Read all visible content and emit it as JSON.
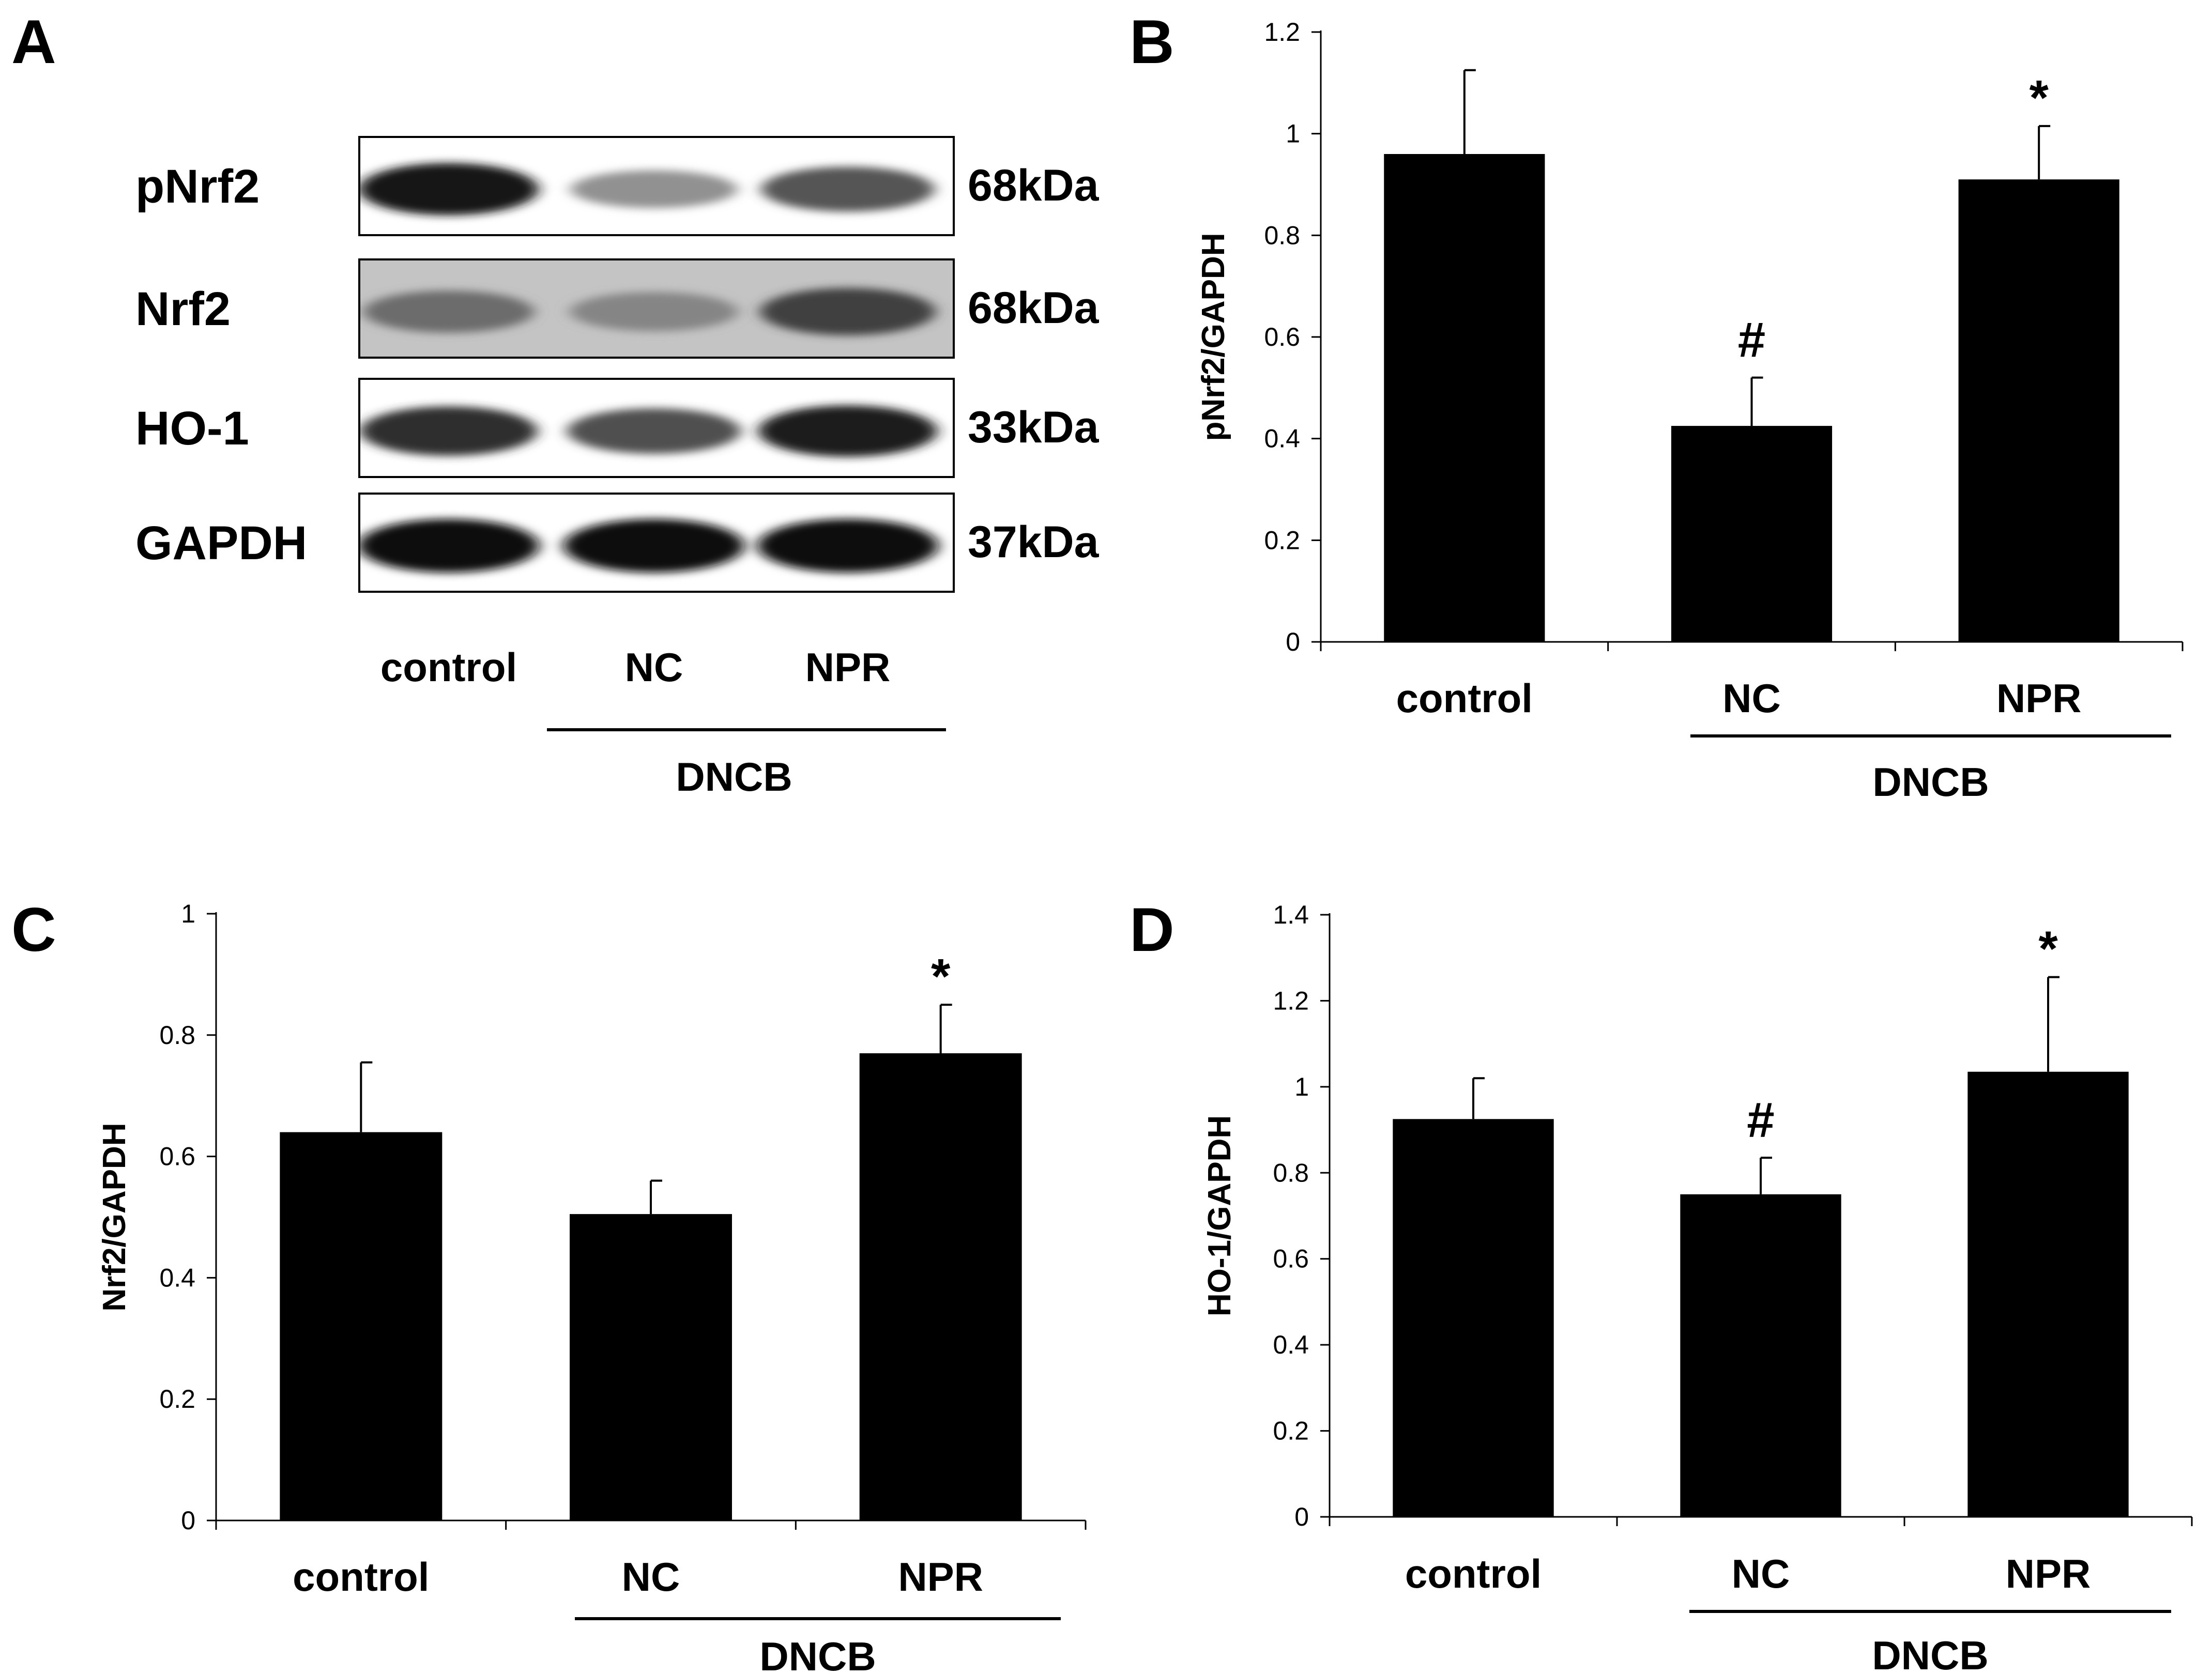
{
  "blot": {
    "panel_label": "A",
    "proteins": [
      {
        "name": "pNrf2",
        "mw": "68kDa",
        "intensity": [
          0.95,
          0.45,
          0.7
        ],
        "background": "#ffffff"
      },
      {
        "name": "Nrf2",
        "mw": "68kDa",
        "intensity": [
          0.6,
          0.5,
          0.78
        ],
        "background": "#c4c4c4"
      },
      {
        "name": "HO-1",
        "mw": "33kDa",
        "intensity": [
          0.85,
          0.72,
          0.92
        ],
        "background": "#ffffff"
      },
      {
        "name": "GAPDH",
        "mw": "37kDa",
        "intensity": [
          1.0,
          1.0,
          1.0
        ],
        "background": "#ffffff"
      }
    ],
    "lanes": [
      "control",
      "NC",
      "NPR"
    ],
    "group_label": "DNCB"
  },
  "chart_data": [
    {
      "panel_label": "B",
      "type": "bar",
      "categories": [
        "control",
        "NC",
        "NPR"
      ],
      "values": [
        0.96,
        0.425,
        0.91
      ],
      "errors": [
        0.165,
        0.095,
        0.105
      ],
      "annotations": [
        "",
        "#",
        "*"
      ],
      "ylabel": "pNrf2/GAPDH",
      "ylim": [
        0,
        1.2
      ],
      "yticks": [
        0,
        0.2,
        0.4,
        0.6,
        0.8,
        1,
        1.2
      ],
      "group_label": "DNCB",
      "bar_color": "#000000"
    },
    {
      "panel_label": "C",
      "type": "bar",
      "categories": [
        "control",
        "NC",
        "NPR"
      ],
      "values": [
        0.64,
        0.505,
        0.77
      ],
      "errors": [
        0.115,
        0.055,
        0.08
      ],
      "annotations": [
        "",
        "",
        "*"
      ],
      "ylabel": "Nrf2/GAPDH",
      "ylim": [
        0,
        1
      ],
      "yticks": [
        0,
        0.2,
        0.4,
        0.6,
        0.8,
        1
      ],
      "group_label": "DNCB",
      "bar_color": "#000000"
    },
    {
      "panel_label": "D",
      "type": "bar",
      "categories": [
        "control",
        "NC",
        "NPR"
      ],
      "values": [
        0.925,
        0.75,
        1.035
      ],
      "errors": [
        0.095,
        0.085,
        0.22
      ],
      "annotations": [
        "",
        "#",
        "*"
      ],
      "ylabel": "HO-1/GAPDH",
      "ylim": [
        0,
        1.4
      ],
      "yticks": [
        0,
        0.2,
        0.4,
        0.6,
        0.8,
        1,
        1.2,
        1.4
      ],
      "group_label": "DNCB",
      "bar_color": "#000000"
    }
  ]
}
